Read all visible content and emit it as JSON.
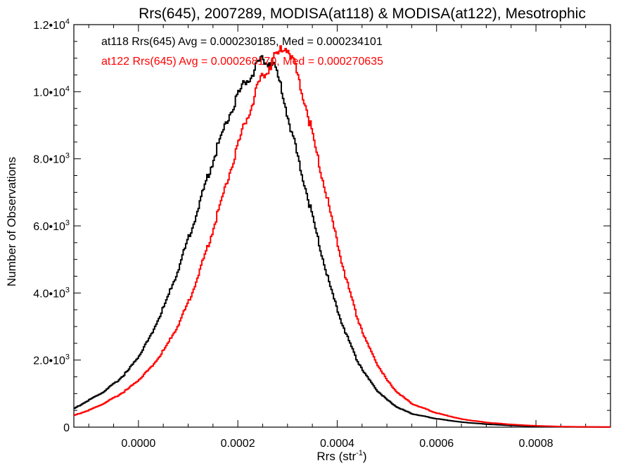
{
  "chart_data": {
    "type": "line",
    "title": "Rrs(645), 2007289, MODISA(at118) & MODISA(at122), Mesotrophic",
    "xlabel": "Rrs (str",
    "xlabel_sup": "-1",
    "xlabel_end": ")",
    "ylabel": "Number of Observations",
    "xlim": [
      -0.00013,
      0.00095
    ],
    "ylim": [
      0,
      12000
    ],
    "x_ticks": [
      {
        "value": 0.0,
        "label": "0.0000"
      },
      {
        "value": 0.0002,
        "label": "0.0002"
      },
      {
        "value": 0.0004,
        "label": "0.0004"
      },
      {
        "value": 0.0006,
        "label": "0.0006"
      },
      {
        "value": 0.0008,
        "label": "0.0008"
      }
    ],
    "y_ticks": [
      {
        "value": 0,
        "mant": "0",
        "exp": ""
      },
      {
        "value": 2000,
        "mant": "2.0•10",
        "exp": "3"
      },
      {
        "value": 4000,
        "mant": "4.0•10",
        "exp": "3"
      },
      {
        "value": 6000,
        "mant": "6.0•10",
        "exp": "3"
      },
      {
        "value": 8000,
        "mant": "8.0•10",
        "exp": "3"
      },
      {
        "value": 10000,
        "mant": "1.0•10",
        "exp": "4"
      },
      {
        "value": 12000,
        "mant": "1.2•10",
        "exp": "4"
      }
    ],
    "grid": false,
    "series": [
      {
        "name": "at118",
        "color": "#000000",
        "annotation": "at118 Rrs(645) Avg = 0.000230185, Med = 0.000234101",
        "points": [
          [
            -0.00013,
            550
          ],
          [
            -0.0001,
            800
          ],
          [
            -7e-05,
            1050
          ],
          [
            -4e-05,
            1400
          ],
          [
            -2e-05,
            1700
          ],
          [
            0.0,
            2100
          ],
          [
            2e-05,
            2600
          ],
          [
            4e-05,
            3200
          ],
          [
            6e-05,
            3900
          ],
          [
            8e-05,
            4700
          ],
          [
            0.0001,
            5600
          ],
          [
            0.00012,
            6500
          ],
          [
            0.00014,
            7500
          ],
          [
            0.00016,
            8400
          ],
          [
            0.00018,
            9200
          ],
          [
            0.0002,
            9900
          ],
          [
            0.00022,
            10400
          ],
          [
            0.00024,
            10750
          ],
          [
            0.00025,
            10900
          ],
          [
            0.00026,
            10950
          ],
          [
            0.00027,
            10800
          ],
          [
            0.00028,
            10500
          ],
          [
            0.00029,
            10000
          ],
          [
            0.0003,
            9300
          ],
          [
            0.00032,
            8100
          ],
          [
            0.00034,
            6900
          ],
          [
            0.00036,
            5700
          ],
          [
            0.00038,
            4500
          ],
          [
            0.0004,
            3500
          ],
          [
            0.00042,
            2700
          ],
          [
            0.00044,
            2000
          ],
          [
            0.00046,
            1500
          ],
          [
            0.00048,
            1100
          ],
          [
            0.0005,
            820
          ],
          [
            0.00052,
            600
          ],
          [
            0.00055,
            400
          ],
          [
            0.0006,
            250
          ],
          [
            0.00065,
            150
          ],
          [
            0.0007,
            90
          ],
          [
            0.00075,
            50
          ],
          [
            0.0008,
            25
          ],
          [
            0.00085,
            10
          ],
          [
            0.0009,
            5
          ],
          [
            0.00095,
            3
          ]
        ]
      },
      {
        "name": "at122",
        "color": "#ff0000",
        "annotation": "at122 Rrs(645) Avg = 0.000268170, Med = 0.000270635",
        "points": [
          [
            -0.00013,
            350
          ],
          [
            -0.0001,
            500
          ],
          [
            -7e-05,
            700
          ],
          [
            -4e-05,
            950
          ],
          [
            -2e-05,
            1150
          ],
          [
            0.0,
            1400
          ],
          [
            2e-05,
            1700
          ],
          [
            4e-05,
            2050
          ],
          [
            6e-05,
            2500
          ],
          [
            8e-05,
            3050
          ],
          [
            0.0001,
            3700
          ],
          [
            0.00012,
            4500
          ],
          [
            0.00014,
            5400
          ],
          [
            0.00016,
            6400
          ],
          [
            0.00018,
            7400
          ],
          [
            0.0002,
            8400
          ],
          [
            0.00022,
            9300
          ],
          [
            0.00024,
            10100
          ],
          [
            0.00026,
            10700
          ],
          [
            0.00028,
            11100
          ],
          [
            0.00029,
            11350
          ],
          [
            0.0003,
            11300
          ],
          [
            0.00031,
            11000
          ],
          [
            0.00032,
            10500
          ],
          [
            0.00034,
            9400
          ],
          [
            0.00036,
            8100
          ],
          [
            0.00038,
            6800
          ],
          [
            0.0004,
            5500
          ],
          [
            0.00042,
            4300
          ],
          [
            0.00044,
            3300
          ],
          [
            0.00046,
            2500
          ],
          [
            0.00048,
            1900
          ],
          [
            0.0005,
            1400
          ],
          [
            0.00052,
            1050
          ],
          [
            0.00055,
            700
          ],
          [
            0.0006,
            420
          ],
          [
            0.00065,
            240
          ],
          [
            0.0007,
            140
          ],
          [
            0.00075,
            80
          ],
          [
            0.0008,
            40
          ],
          [
            0.00085,
            18
          ],
          [
            0.0009,
            8
          ],
          [
            0.00095,
            4
          ]
        ]
      }
    ]
  }
}
